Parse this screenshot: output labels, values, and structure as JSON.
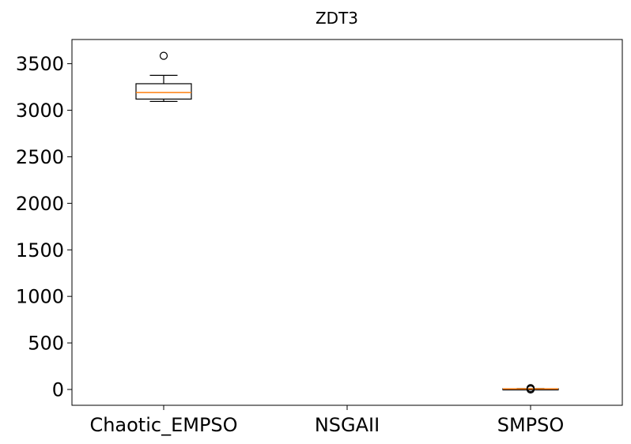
{
  "chart_data": {
    "type": "box",
    "title": "ZDT3",
    "xlabel": "",
    "ylabel": "",
    "categories": [
      "Chaotic_EMPSO",
      "NSGAII",
      "SMPSO"
    ],
    "ylim": [
      -170,
      3760
    ],
    "yticks": [
      0,
      500,
      1000,
      1500,
      2000,
      2500,
      3000,
      3500
    ],
    "ytick_labels": [
      "0",
      "500",
      "1000",
      "1500",
      "2000",
      "2500",
      "3000",
      "3500"
    ],
    "grid": false,
    "boxes": [
      {
        "name": "Chaotic_EMPSO",
        "whisker_low": 3095,
        "q1": 3120,
        "median": 3190,
        "q3": 3285,
        "whisker_high": 3375,
        "outliers": [
          3585
        ]
      },
      {
        "name": "NSGAII",
        "whisker_low": null,
        "q1": null,
        "median": null,
        "q3": null,
        "whisker_high": null,
        "outliers": []
      },
      {
        "name": "SMPSO",
        "whisker_low": 3,
        "q1": 5,
        "median": 6,
        "q3": 8,
        "whisker_high": 10,
        "outliers": [
          0,
          2,
          12,
          15
        ]
      }
    ],
    "colors": {
      "box": "#000000",
      "median": "#ff7f0e",
      "frame": "#000000"
    }
  }
}
